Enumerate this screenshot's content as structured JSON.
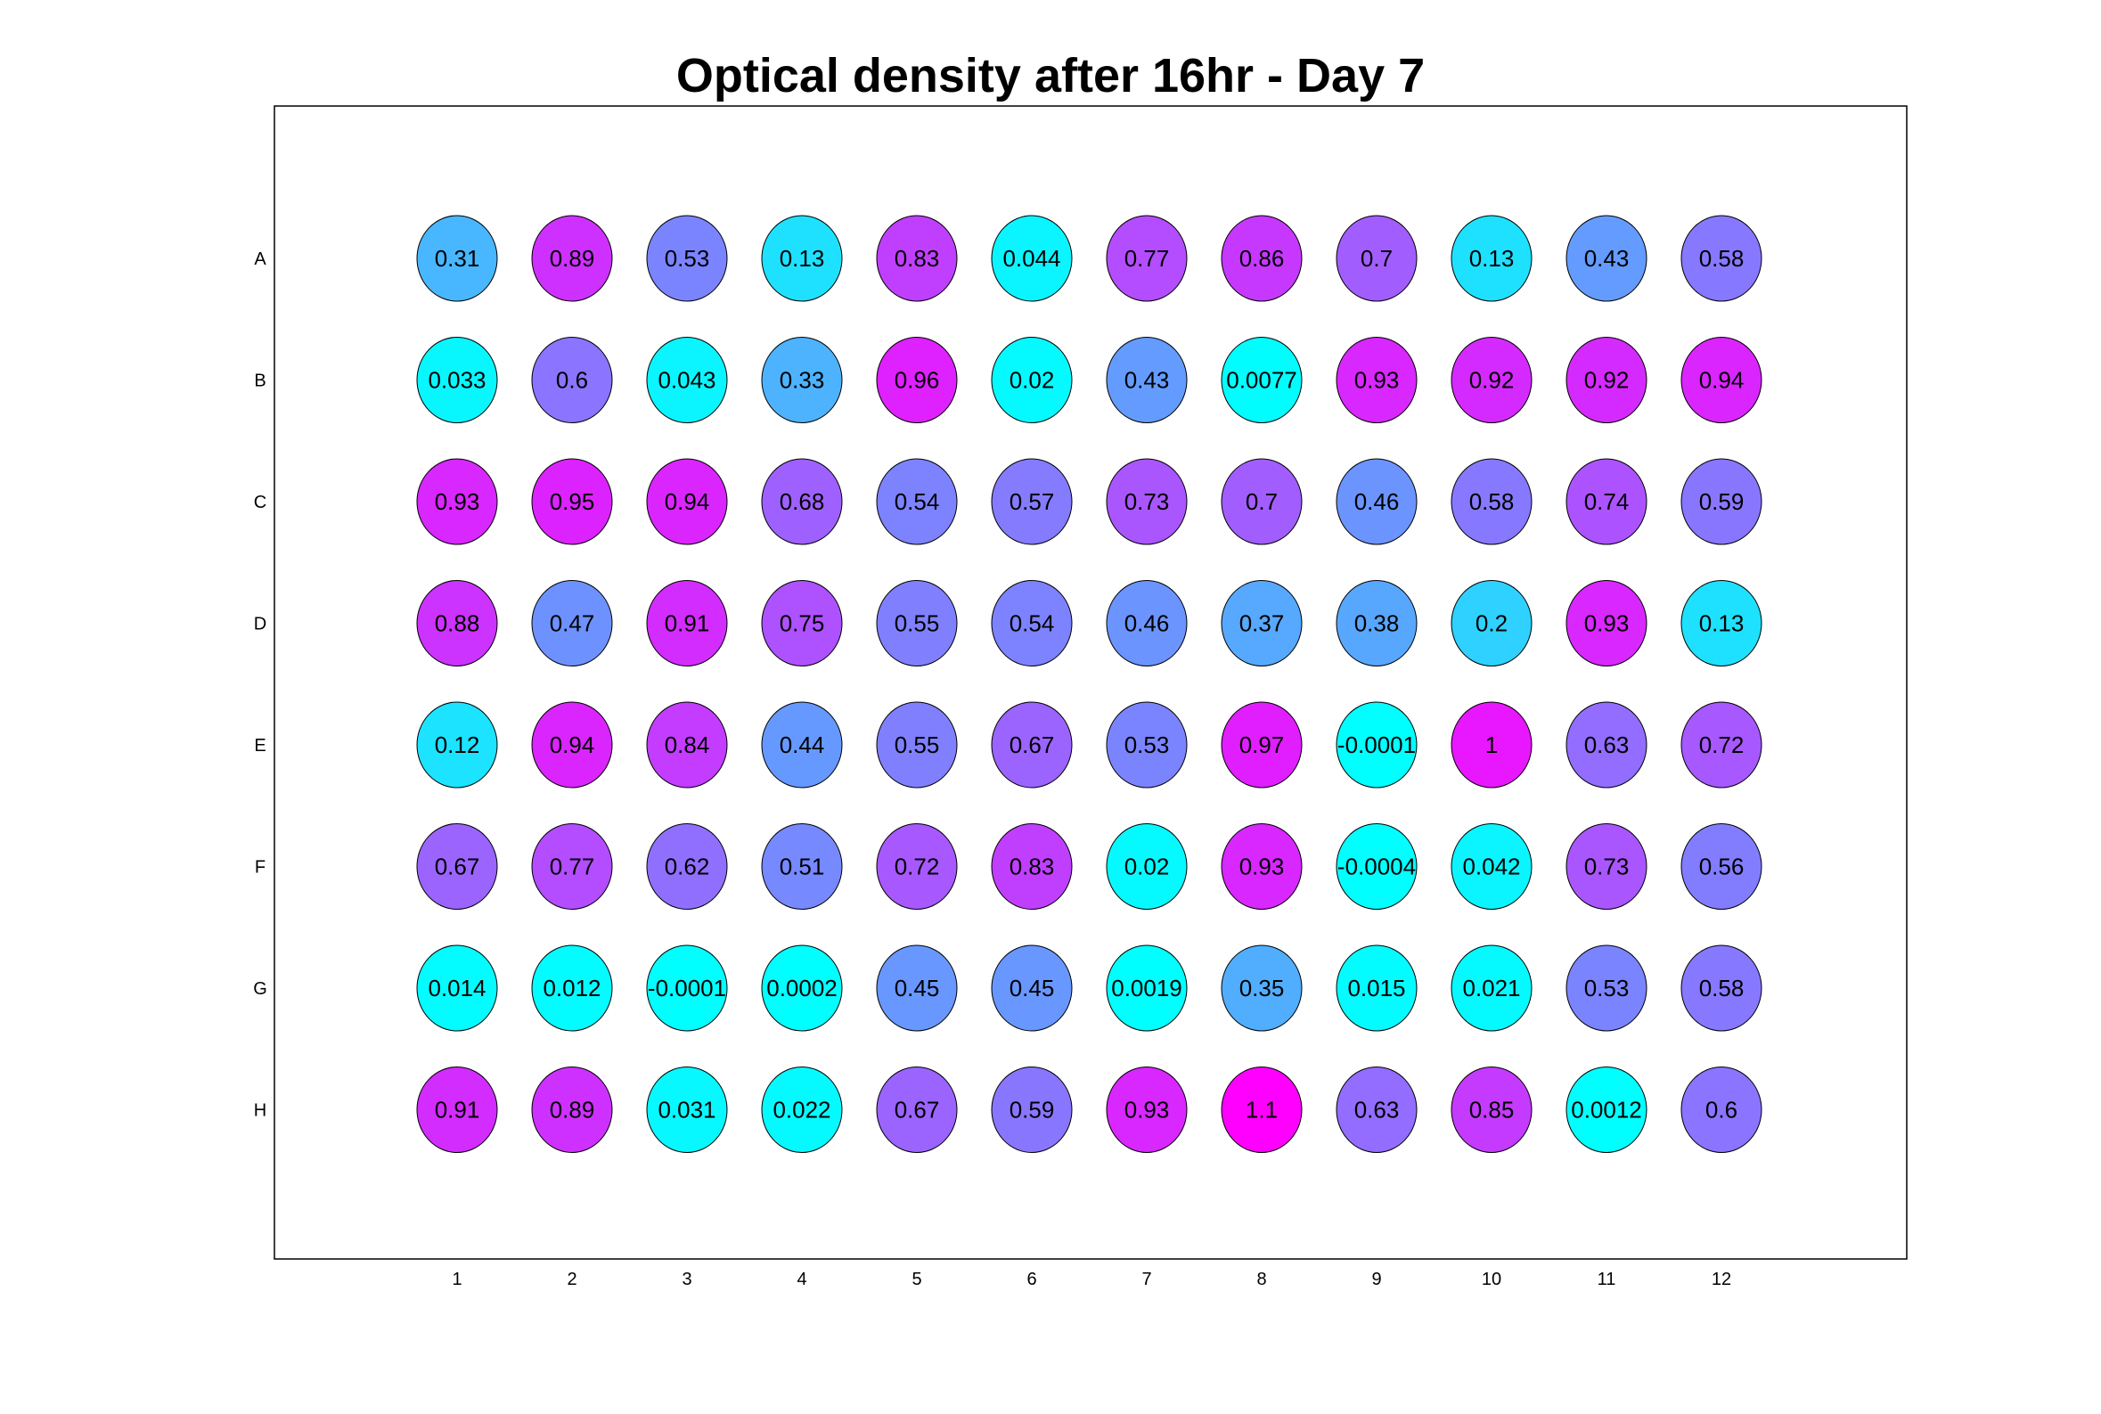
{
  "chart_data": {
    "type": "heatmap",
    "title": "Optical density after 16hr - Day 7",
    "rows": [
      "A",
      "B",
      "C",
      "D",
      "E",
      "F",
      "G",
      "H"
    ],
    "columns": [
      "1",
      "2",
      "3",
      "4",
      "5",
      "6",
      "7",
      "8",
      "9",
      "10",
      "11",
      "12"
    ],
    "values": [
      [
        "0.31",
        "0.89",
        "0.53",
        "0.13",
        "0.83",
        "0.044",
        "0.77",
        "0.86",
        "0.7",
        "0.13",
        "0.43",
        "0.58"
      ],
      [
        "0.033",
        "0.6",
        "0.043",
        "0.33",
        "0.96",
        "0.02",
        "0.43",
        "0.0077",
        "0.93",
        "0.92",
        "0.92",
        "0.94"
      ],
      [
        "0.93",
        "0.95",
        "0.94",
        "0.68",
        "0.54",
        "0.57",
        "0.73",
        "0.7",
        "0.46",
        "0.58",
        "0.74",
        "0.59"
      ],
      [
        "0.88",
        "0.47",
        "0.91",
        "0.75",
        "0.55",
        "0.54",
        "0.46",
        "0.37",
        "0.38",
        "0.2",
        "0.93",
        "0.13"
      ],
      [
        "0.12",
        "0.94",
        "0.84",
        "0.44",
        "0.55",
        "0.67",
        "0.53",
        "0.97",
        "-0.0001",
        "1",
        "0.63",
        "0.72"
      ],
      [
        "0.67",
        "0.77",
        "0.62",
        "0.51",
        "0.72",
        "0.83",
        "0.02",
        "0.93",
        "-0.0004",
        "0.042",
        "0.73",
        "0.56"
      ],
      [
        "0.014",
        "0.012",
        "-0.0001",
        "0.0002",
        "0.45",
        "0.45",
        "0.0019",
        "0.35",
        "0.015",
        "0.021",
        "0.53",
        "0.58"
      ],
      [
        "0.91",
        "0.89",
        "0.031",
        "0.022",
        "0.67",
        "0.59",
        "0.93",
        "1.1",
        "0.63",
        "0.85",
        "0.0012",
        "0.6"
      ]
    ],
    "colormap": "cool",
    "color_range": [
      0,
      1.1
    ],
    "colormap_low": "#00ffff",
    "colormap_high": "#ff00ff"
  }
}
